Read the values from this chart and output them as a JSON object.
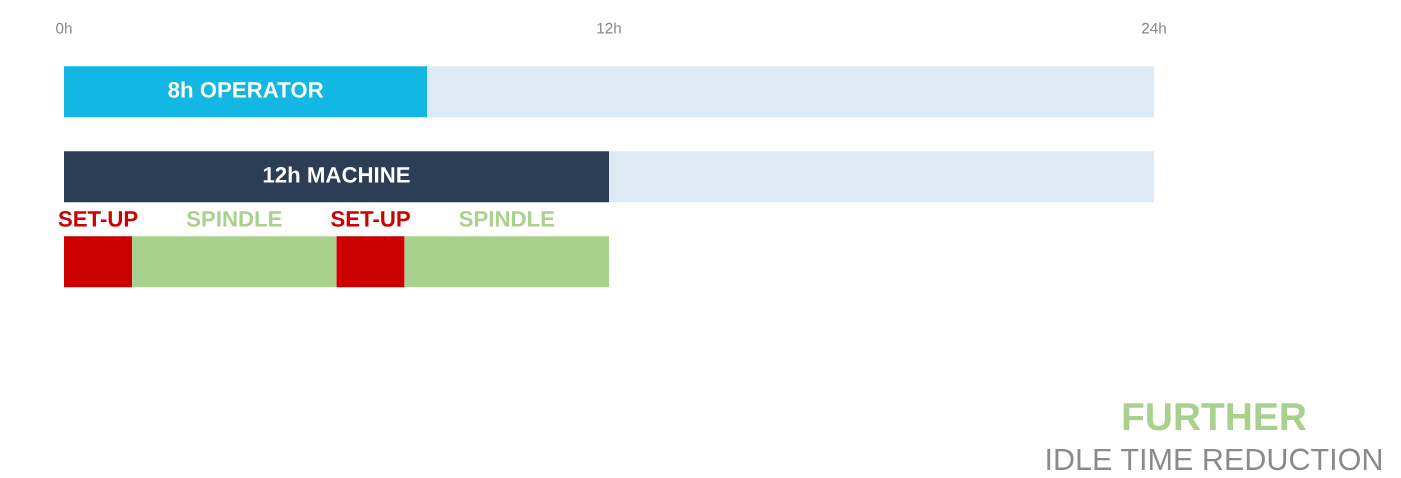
{
  "chart_data": {
    "type": "bar",
    "orientation": "horizontal",
    "stacked": true,
    "categories": [
      null,
      null,
      null
    ],
    "series": [
      {
        "name": "8h OPERATOR",
        "color": "#12b8e3",
        "values": [
          8,
          null,
          null
        ]
      },
      {
        "name": "12h MACHINE",
        "color": "#2c3e55",
        "values": [
          null,
          12,
          null
        ]
      },
      {
        "name": "SET-UP",
        "color": "#cc0000",
        "values": [
          null,
          null,
          1.5
        ]
      },
      {
        "name": "SPINDLE",
        "color": "#a9d18e",
        "values": [
          null,
          null,
          4.5
        ]
      },
      {
        "name": "SET-UP",
        "color": "#cc0000",
        "values": [
          null,
          null,
          1.5
        ]
      },
      {
        "name": "SPINDLE",
        "color": "#a9d18e",
        "values": [
          null,
          null,
          4.5
        ]
      },
      {
        "color": "#dde9f5",
        "values": [
          16,
          12,
          null
        ]
      }
    ],
    "xlim": [
      0,
      24
    ],
    "xticks": [
      {
        "value": 0,
        "label": "0h"
      },
      {
        "value": 12,
        "label": "12h"
      },
      {
        "value": 24,
        "label": "24h"
      }
    ],
    "annotations": [
      "FURTHER",
      "IDLE TIME REDUCTION"
    ]
  }
}
